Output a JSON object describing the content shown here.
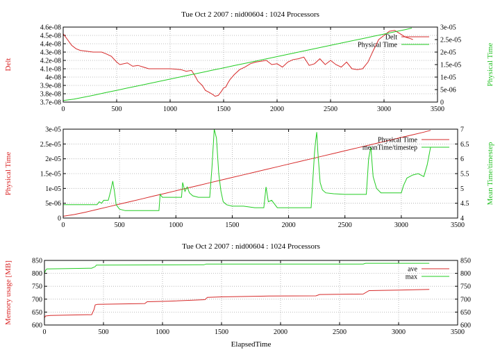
{
  "colors": {
    "red": "#d62828",
    "green": "#22cc22",
    "grid": "#aaaaaa",
    "axis": "#000000"
  },
  "chart_data": [
    {
      "type": "line",
      "title": "Tue Oct 2 2007 : nid00604 : 1024 Processors",
      "xlabel": "",
      "ylabel_left": "Delt",
      "ylabel_right": "Physical Time",
      "xlim": [
        0,
        3500
      ],
      "xticks": [
        "0",
        "500",
        "1000",
        "1500",
        "2000",
        "2500",
        "3000",
        "3500"
      ],
      "ylim_left": [
        3.7e-08,
        4.6e-08
      ],
      "yticks_left": [
        "3.7e-08",
        "3.8e-08",
        "3.9e-08",
        "4e-08",
        "4.1e-08",
        "4.2e-08",
        "4.3e-08",
        "4.4e-08",
        "4.5e-08",
        "4.6e-08"
      ],
      "ylim_right": [
        0,
        3e-05
      ],
      "yticks_right": [
        "0",
        "5e-06",
        "1e-05",
        "1.5e-05",
        "2e-05",
        "2.5e-05",
        "3e-05"
      ],
      "legend_position": "top-right",
      "grid": true,
      "series": [
        {
          "name": "Delt",
          "color": "#d62828",
          "axis": "left",
          "x": [
            0,
            40,
            80,
            120,
            160,
            220,
            280,
            360,
            400,
            450,
            500,
            530,
            600,
            650,
            700,
            750,
            800,
            900,
            1000,
            1100,
            1150,
            1200,
            1230,
            1260,
            1300,
            1330,
            1360,
            1400,
            1420,
            1450,
            1480,
            1500,
            1520,
            1540,
            1560,
            1600,
            1650,
            1700,
            1750,
            1800,
            1900,
            1950,
            2000,
            2050,
            2100,
            2150,
            2200,
            2250,
            2300,
            2350,
            2400,
            2450,
            2500,
            2550,
            2600,
            2650,
            2700,
            2750,
            2800,
            2850,
            2900,
            2950,
            3000,
            3050,
            3100,
            3150,
            3200,
            3250,
            3270
          ],
          "y": [
            4.52e-08,
            4.45e-08,
            4.38e-08,
            4.34e-08,
            4.32e-08,
            4.31e-08,
            4.3e-08,
            4.3e-08,
            4.28e-08,
            4.25e-08,
            4.18e-08,
            4.15e-08,
            4.17e-08,
            4.13e-08,
            4.14e-08,
            4.12e-08,
            4.1e-08,
            4.1e-08,
            4.1e-08,
            4.09e-08,
            4.07e-08,
            4.08e-08,
            4.02e-08,
            3.95e-08,
            3.9e-08,
            3.84e-08,
            3.82e-08,
            3.79e-08,
            3.77e-08,
            3.78e-08,
            3.83e-08,
            3.87e-08,
            3.88e-08,
            3.93e-08,
            3.97e-08,
            4.03e-08,
            4.09e-08,
            4.12e-08,
            4.16e-08,
            4.18e-08,
            4.2e-08,
            4.15e-08,
            4.16e-08,
            4.12e-08,
            4.18e-08,
            4.21e-08,
            4.22e-08,
            4.24e-08,
            4.14e-08,
            4.16e-08,
            4.22e-08,
            4.15e-08,
            4.2e-08,
            4.15e-08,
            4.12e-08,
            4.18e-08,
            4.1e-08,
            4.09e-08,
            4.1e-08,
            4.18e-08,
            4.32e-08,
            4.45e-08,
            4.5e-08,
            4.55e-08,
            4.56e-08,
            4.52e-08,
            4.48e-08,
            4.46e-08,
            4.45e-08
          ]
        },
        {
          "name": "Physical Time",
          "color": "#22cc22",
          "axis": "right",
          "x": [
            0,
            100,
            200,
            300,
            400,
            500,
            600,
            700,
            800,
            900,
            1000,
            1100,
            1200,
            1300,
            1400,
            1500,
            1600,
            1700,
            1800,
            1900,
            2000,
            2100,
            2200,
            2300,
            2400,
            2500,
            2600,
            2700,
            2800,
            2900,
            3000,
            3100,
            3200,
            3260
          ],
          "y": [
            6e-07,
            1.2e-06,
            2e-06,
            2.9e-06,
            3.8e-06,
            4.7e-06,
            5.6e-06,
            6.5e-06,
            7.4e-06,
            8.3e-06,
            9.2e-06,
            1.01e-05,
            1.1e-05,
            1.19e-05,
            1.28e-05,
            1.37e-05,
            1.46e-05,
            1.55e-05,
            1.64e-05,
            1.73e-05,
            1.82e-05,
            1.91e-05,
            2e-05,
            2.09e-05,
            2.18e-05,
            2.27e-05,
            2.36e-05,
            2.45e-05,
            2.54e-05,
            2.63e-05,
            2.72e-05,
            2.81e-05,
            2.9e-05,
            2.96e-05
          ]
        }
      ]
    },
    {
      "type": "line",
      "title": "",
      "xlabel": "",
      "ylabel_left": "Physical Time",
      "ylabel_right": "Mean Time/timestep",
      "xlim": [
        0,
        3500
      ],
      "xticks": [
        "0",
        "500",
        "1000",
        "1500",
        "2000",
        "2500",
        "3000",
        "3500"
      ],
      "ylim_left": [
        0,
        3e-05
      ],
      "yticks_left": [
        "0",
        "5e-06",
        "1e-05",
        "1.5e-05",
        "2e-05",
        "2.5e-05",
        "3e-05"
      ],
      "ylim_right": [
        4,
        7
      ],
      "yticks_right": [
        "4",
        "4.5",
        "5",
        "5.5",
        "6",
        "6.5",
        "7"
      ],
      "legend_position": "top-right",
      "grid": true,
      "series": [
        {
          "name": "Physical Time",
          "color": "#d62828",
          "axis": "left",
          "x": [
            0,
            100,
            200,
            300,
            400,
            500,
            600,
            700,
            800,
            900,
            1000,
            1100,
            1200,
            1300,
            1400,
            1500,
            1600,
            1700,
            1800,
            1900,
            2000,
            2100,
            2200,
            2300,
            2400,
            2500,
            2600,
            2700,
            2800,
            2900,
            3000,
            3100,
            3200,
            3260
          ],
          "y": [
            6e-07,
            1.2e-06,
            2e-06,
            2.9e-06,
            3.8e-06,
            4.7e-06,
            5.6e-06,
            6.5e-06,
            7.4e-06,
            8.3e-06,
            9.2e-06,
            1.01e-05,
            1.1e-05,
            1.19e-05,
            1.28e-05,
            1.37e-05,
            1.46e-05,
            1.55e-05,
            1.64e-05,
            1.73e-05,
            1.82e-05,
            1.91e-05,
            2e-05,
            2.09e-05,
            2.18e-05,
            2.27e-05,
            2.36e-05,
            2.45e-05,
            2.54e-05,
            2.63e-05,
            2.72e-05,
            2.81e-05,
            2.9e-05,
            2.96e-05
          ]
        },
        {
          "name": "meanTime/timestep",
          "color": "#22cc22",
          "axis": "right",
          "x": [
            0,
            200,
            300,
            320,
            340,
            360,
            400,
            420,
            440,
            455,
            470,
            500,
            550,
            600,
            700,
            850,
            860,
            880,
            900,
            1000,
            1050,
            1060,
            1080,
            1100,
            1120,
            1150,
            1200,
            1300,
            1320,
            1340,
            1360,
            1380,
            1400,
            1420,
            1450,
            1500,
            1600,
            1700,
            1780,
            1800,
            1820,
            1850,
            1900,
            2000,
            2100,
            2200,
            2230,
            2240,
            2250,
            2260,
            2280,
            2300,
            2330,
            2400,
            2500,
            2600,
            2690,
            2700,
            2710,
            2730,
            2750,
            2780,
            2820,
            2900,
            3000,
            3020,
            3050,
            3100,
            3150,
            3200,
            3230,
            3260
          ],
          "y": [
            4.45,
            4.45,
            4.45,
            4.55,
            4.5,
            4.6,
            4.6,
            4.9,
            5.25,
            4.9,
            4.45,
            4.3,
            4.25,
            4.25,
            4.25,
            4.25,
            4.8,
            4.7,
            4.7,
            4.7,
            4.7,
            5.2,
            4.9,
            5.05,
            4.85,
            4.75,
            4.7,
            4.7,
            5.7,
            7.0,
            6.7,
            5.5,
            4.9,
            4.55,
            4.45,
            4.4,
            4.4,
            4.35,
            4.35,
            5.05,
            4.55,
            4.6,
            4.35,
            4.35,
            4.35,
            4.35,
            6.2,
            6.6,
            6.9,
            6.2,
            5.2,
            4.95,
            4.85,
            4.82,
            4.8,
            4.8,
            4.8,
            5.4,
            6.0,
            6.4,
            5.4,
            5.0,
            4.85,
            4.85,
            4.85,
            5.1,
            5.35,
            5.45,
            5.5,
            5.4,
            5.8,
            6.4
          ]
        }
      ]
    },
    {
      "type": "line",
      "title": "Tue Oct 2 2007 : nid00604 : 1024 Processors",
      "xlabel": "ElapsedTime",
      "ylabel_left": "Memory usage [MB]",
      "ylabel_right": "",
      "xlim": [
        0,
        3500
      ],
      "xticks": [
        "0",
        "500",
        "1000",
        "1500",
        "2000",
        "2500",
        "3000",
        "3500"
      ],
      "ylim_left": [
        600,
        850
      ],
      "yticks_left": [
        "600",
        "650",
        "700",
        "750",
        "800",
        "850"
      ],
      "ylim_right": [
        600,
        850
      ],
      "yticks_right": [
        "600",
        "650",
        "700",
        "750",
        "800",
        "850"
      ],
      "legend_position": "top-right",
      "grid": true,
      "series": [
        {
          "name": "ave",
          "color": "#d62828",
          "axis": "left",
          "x": [
            0,
            10,
            50,
            400,
            420,
            430,
            450,
            850,
            870,
            1050,
            1360,
            1380,
            1500,
            1900,
            2300,
            2330,
            2700,
            2750,
            3000,
            3260
          ],
          "y": [
            628,
            635,
            637,
            640,
            660,
            678,
            680,
            683,
            690,
            692,
            698,
            707,
            709,
            712,
            713,
            718,
            720,
            733,
            735,
            738
          ]
        },
        {
          "name": "max",
          "color": "#22cc22",
          "axis": "left",
          "x": [
            0,
            10,
            20,
            400,
            430,
            440,
            1300,
            1350,
            1370,
            2700,
            2720,
            3260
          ],
          "y": [
            800,
            812,
            817,
            820,
            826,
            832,
            833,
            833,
            836,
            836,
            839,
            839
          ]
        }
      ]
    }
  ]
}
